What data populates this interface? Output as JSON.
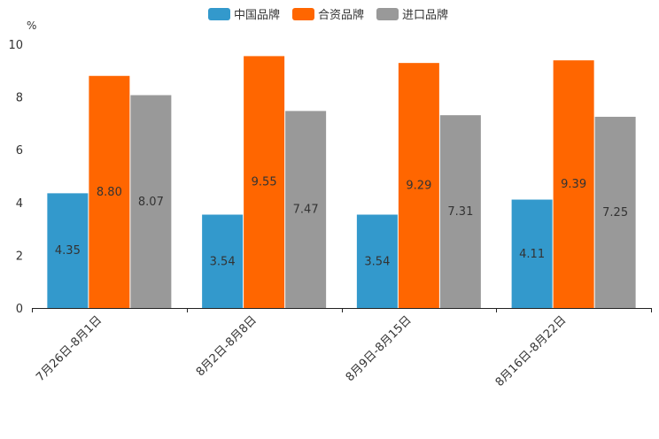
{
  "chart_data": {
    "type": "bar",
    "ylabel": "%",
    "ylim": [
      0,
      10
    ],
    "yticks": [
      "0",
      "2",
      "4",
      "6",
      "8",
      "10"
    ],
    "categories": [
      "7月26日-8月1日",
      "8月2日-8月8日",
      "8月9日-8月15日",
      "8月16日-8月22日"
    ],
    "series": [
      {
        "name": "中国品牌",
        "color": "#3399cc",
        "values": [
          4.35,
          3.54,
          3.54,
          4.11
        ],
        "labels": [
          "4.35",
          "3.54",
          "3.54",
          "4.11"
        ]
      },
      {
        "name": "合资品牌",
        "color": "#ff6600",
        "values": [
          8.8,
          9.55,
          9.29,
          9.39
        ],
        "labels": [
          "8.80",
          "9.55",
          "9.29",
          "9.39"
        ]
      },
      {
        "name": "进口品牌",
        "color": "#999999",
        "values": [
          8.07,
          7.47,
          7.31,
          7.25
        ],
        "labels": [
          "8.07",
          "7.47",
          "7.31",
          "7.25"
        ]
      }
    ],
    "legend_position": "top-center"
  }
}
